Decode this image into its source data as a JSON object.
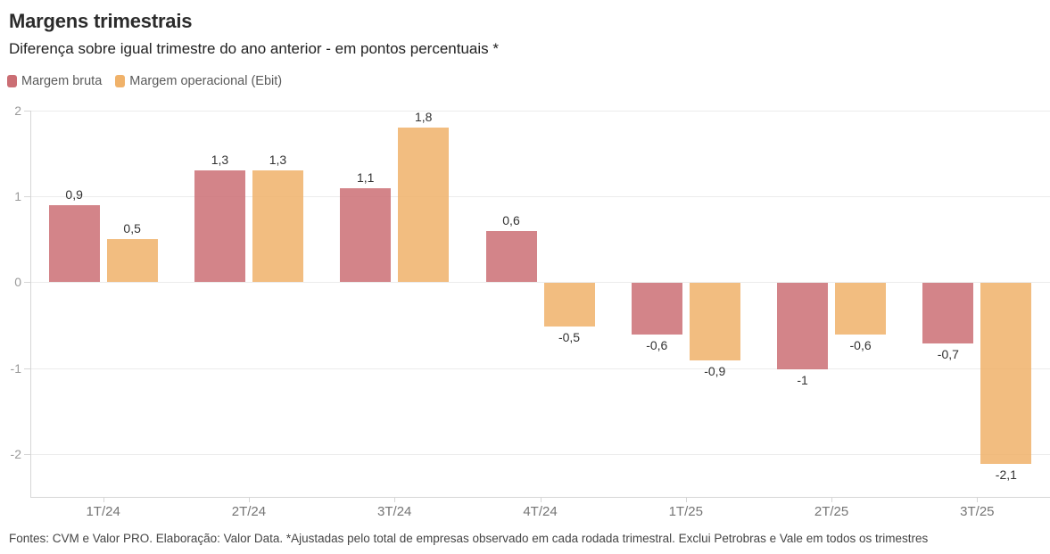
{
  "header": {
    "title": "Margens trimestrais",
    "subtitle": "Diferença sobre igual trimestre do ano anterior - em pontos percentuais *"
  },
  "chart_data": {
    "type": "bar",
    "title": "Margens trimestrais",
    "subtitle": "Diferença sobre igual trimestre do ano anterior - em pontos percentuais *",
    "categories": [
      "1T/24",
      "2T/24",
      "3T/24",
      "4T/24",
      "1T/25",
      "2T/25",
      "3T/25"
    ],
    "series": [
      {
        "key": "margem-bruta",
        "name": "Margem bruta",
        "color": "#cb6e74",
        "values": [
          0.9,
          1.3,
          1.1,
          0.6,
          -0.6,
          -1,
          -0.7
        ],
        "labels": [
          "0,9",
          "1,3",
          "1,1",
          "0,6",
          "-0,6",
          "-1",
          "-0,7"
        ]
      },
      {
        "key": "margem-operacional-ebit",
        "name": "Margem operacional (Ebit)",
        "color": "#f0b26a",
        "values": [
          0.5,
          1.3,
          1.8,
          -0.5,
          -0.9,
          -0.6,
          -2.1
        ],
        "labels": [
          "0,5",
          "1,3",
          "1,8",
          "-0,5",
          "-0,9",
          "-0,6",
          "-2,1"
        ]
      }
    ],
    "bar_opacity": 0.85,
    "xlabel": "",
    "ylabel": "",
    "ylim": [
      -2.5,
      2
    ],
    "yticks": [
      2,
      1,
      0,
      -1,
      -2
    ],
    "ytick_labels": [
      "2",
      "1",
      "0",
      "-1",
      "-2"
    ],
    "grid": true,
    "legend_position": "top-left",
    "value_labels_shown": true,
    "colors": {
      "gridline": "#ececec",
      "axis": "#d6d6d6",
      "value_label": "#333333",
      "tick_label": "#9a9a9a"
    }
  },
  "footer": {
    "source": "Fontes: CVM e Valor PRO. Elaboração: Valor Data. *Ajustadas pelo total de empresas observado em cada rodada trimestral. Exclui Petrobras e Vale em todos os trimestres"
  }
}
